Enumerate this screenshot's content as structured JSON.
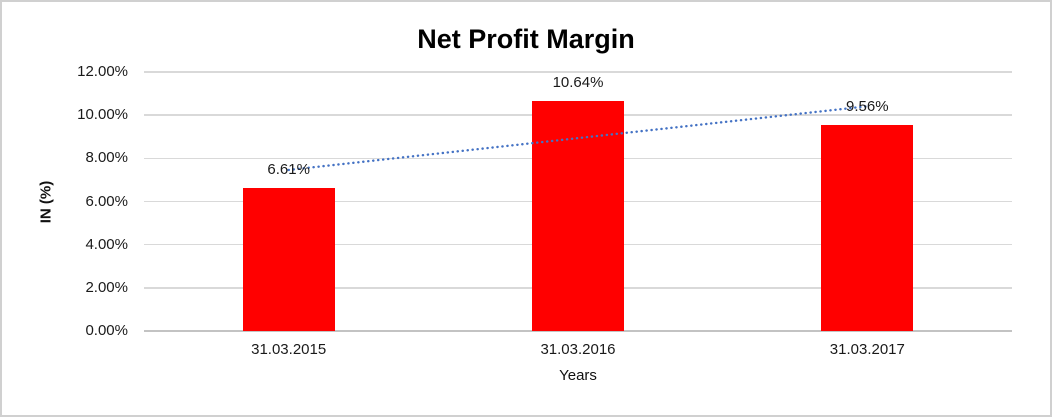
{
  "chart_data": {
    "type": "bar",
    "title": "Net Profit Margin",
    "xlabel": "Years",
    "ylabel": "IN (%)",
    "categories": [
      "31.03.2015",
      "31.03.2016",
      "31.03.2017"
    ],
    "values": [
      6.61,
      10.64,
      9.56
    ],
    "data_labels": [
      "6.61%",
      "10.64%",
      "9.56%"
    ],
    "ylim": [
      0,
      12
    ],
    "ytick_step": 2,
    "ytick_labels": [
      "0.00%",
      "2.00%",
      "4.00%",
      "6.00%",
      "8.00%",
      "10.00%",
      "12.00%"
    ],
    "grid": true,
    "legend": "none",
    "bar_color": "#ff0000",
    "gridline_color": "#d9d9d9",
    "axis_line_color": "#c3c3c3",
    "trendline": {
      "type": "linear",
      "style": "round-dot",
      "color": "#4472c4",
      "series": "Net Profit Margin"
    }
  }
}
